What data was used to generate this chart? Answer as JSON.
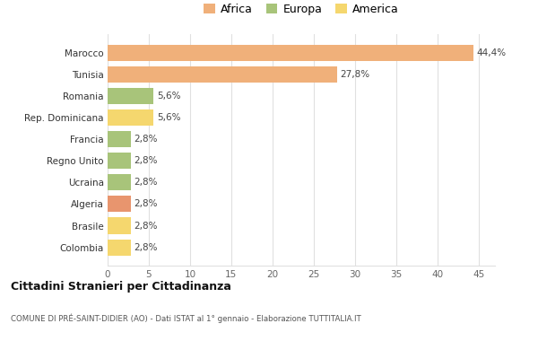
{
  "categories": [
    "Colombia",
    "Brasile",
    "Algeria",
    "Ucraina",
    "Regno Unito",
    "Francia",
    "Rep. Dominicana",
    "Romania",
    "Tunisia",
    "Marocco"
  ],
  "values": [
    2.8,
    2.8,
    2.8,
    2.8,
    2.8,
    2.8,
    5.6,
    5.6,
    27.8,
    44.4
  ],
  "colors": [
    "#f5d76e",
    "#f5d76e",
    "#e8956e",
    "#a8c47a",
    "#a8c47a",
    "#a8c47a",
    "#f5d76e",
    "#a8c47a",
    "#f0b07a",
    "#f0b07a"
  ],
  "labels": [
    "2,8%",
    "2,8%",
    "2,8%",
    "2,8%",
    "2,8%",
    "2,8%",
    "5,6%",
    "5,6%",
    "27,8%",
    "44,4%"
  ],
  "legend": [
    {
      "label": "Africa",
      "color": "#f0b07a"
    },
    {
      "label": "Europa",
      "color": "#a8c47a"
    },
    {
      "label": "America",
      "color": "#f5d76e"
    }
  ],
  "title": "Cittadini Stranieri per Cittadinanza",
  "subtitle": "COMUNE DI PRÉ-SAINT-DIDIER (AO) - Dati ISTAT al 1° gennaio - Elaborazione TUTTITALIA.IT",
  "xlim": [
    0,
    47
  ],
  "xticks": [
    0,
    5,
    10,
    15,
    20,
    25,
    30,
    35,
    40,
    45
  ],
  "background_color": "#ffffff",
  "grid_color": "#e0e0e0"
}
